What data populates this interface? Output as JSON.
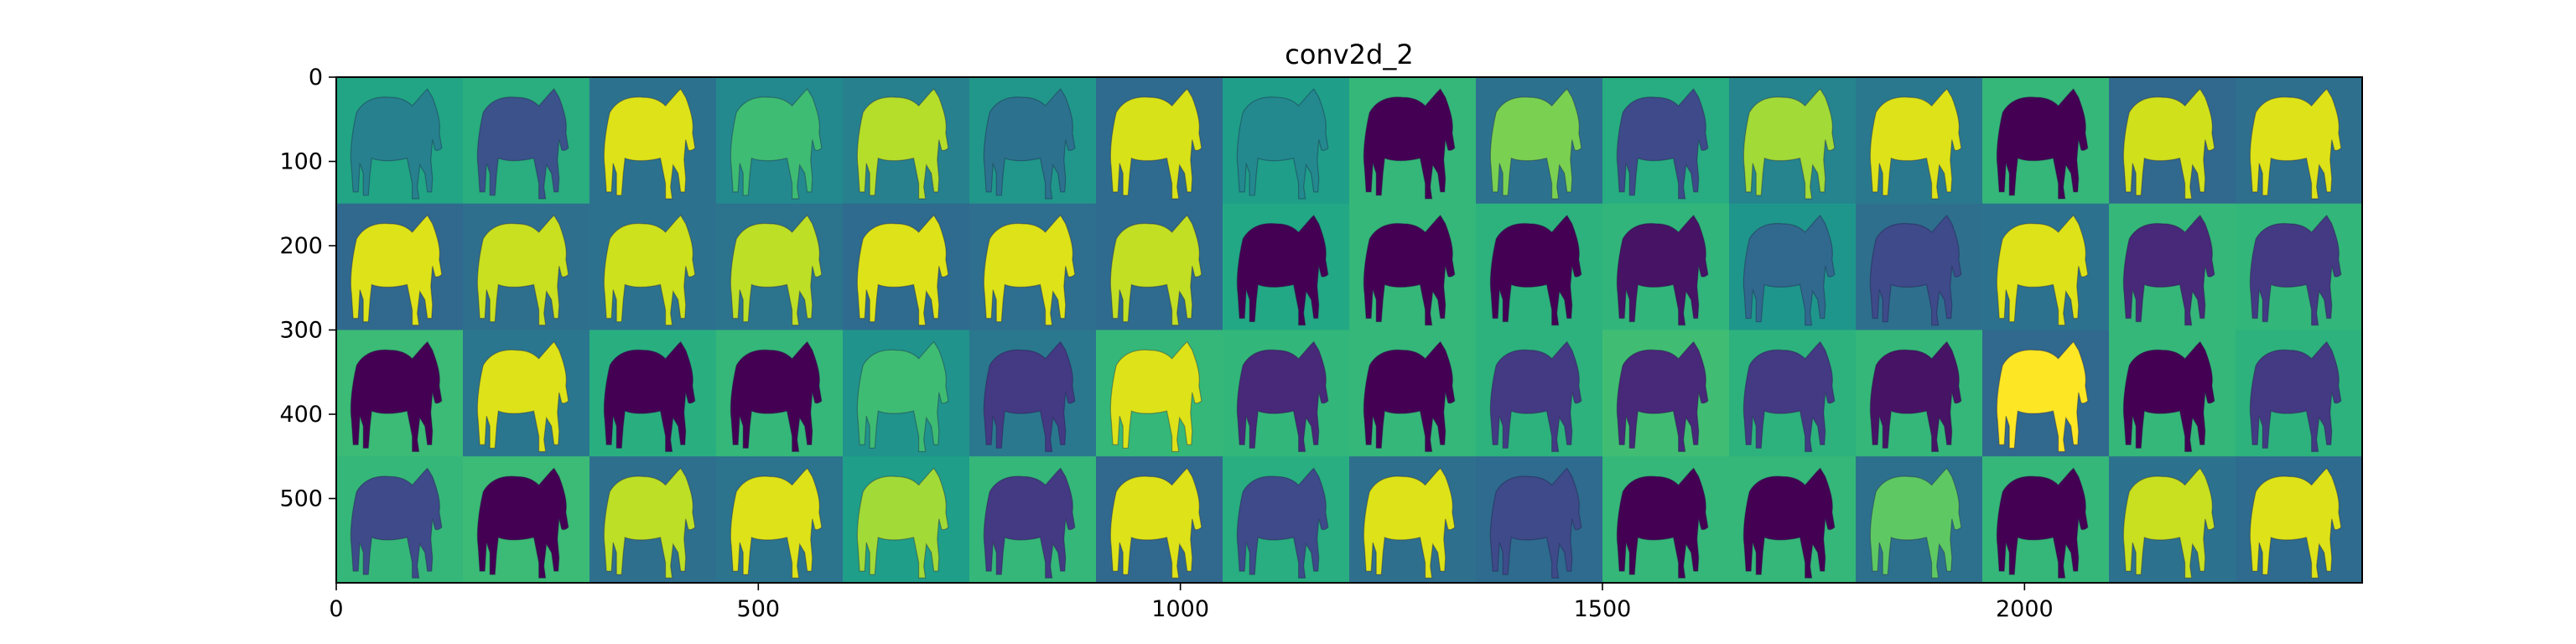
{
  "chart_data": {
    "type": "heatmap",
    "title": "conv2d_2",
    "xlabel": "",
    "ylabel": "",
    "xlim": [
      0,
      2400
    ],
    "ylim": [
      600,
      0
    ],
    "x_ticks": [
      0,
      500,
      1000,
      1500,
      2000
    ],
    "y_ticks": [
      0,
      100,
      200,
      300,
      400,
      500
    ],
    "grid": false,
    "colormap": "viridis",
    "tile_rows": 4,
    "tile_cols": 16,
    "tile_size": 150,
    "subject": "horse",
    "tile_backgrounds": [
      [
        "#21a585",
        "#2aad7f",
        "#2c728e",
        "#23898e",
        "#27808e",
        "#20978a",
        "#2e6b8e",
        "#1f9e89",
        "#35b779",
        "#2c728e",
        "#27ad81",
        "#25848e",
        "#2a788e",
        "#35b779",
        "#31688e",
        "#2e6f8e"
      ],
      [
        "#31688e",
        "#2e6f8e",
        "#2c728e",
        "#2c738e",
        "#2e6b8e",
        "#2e6e8e",
        "#2e6b8e",
        "#22a884",
        "#35b779",
        "#2db27d",
        "#31b57b",
        "#1f968b",
        "#2e6f8e",
        "#2c728e",
        "#35b779",
        "#33b67a"
      ],
      [
        "#3bbb75",
        "#2a768e",
        "#29af7f",
        "#35b779",
        "#20938c",
        "#2a788e",
        "#35b779",
        "#33b67a",
        "#35b779",
        "#2db27d",
        "#40bd72",
        "#2db27d",
        "#35b779",
        "#31688e",
        "#35b779",
        "#2db27d"
      ],
      [
        "#35b779",
        "#3bbb75",
        "#2e6f8e",
        "#2c738e",
        "#1f9e89",
        "#35b779",
        "#31688e",
        "#28ae80",
        "#2e6f8e",
        "#2e6b8e",
        "#35b779",
        "#35b779",
        "#2d708e",
        "#35b779",
        "#2c728e",
        "#2e6b8e"
      ]
    ],
    "tile_horses": [
      [
        "#27808e",
        "#3b528b",
        "#dde318",
        "#3fbc73",
        "#b5de2b",
        "#2c728e",
        "#d8e219",
        "#23898e",
        "#440154",
        "#7ad151",
        "#3e4a89",
        "#a2da37",
        "#dde318",
        "#440154",
        "#d0e11c",
        "#dde318"
      ],
      [
        "#dde318",
        "#c8e020",
        "#cde11d",
        "#bddf26",
        "#dde318",
        "#dde318",
        "#c2df23",
        "#440154",
        "#440154",
        "#440154",
        "#471365",
        "#31688e",
        "#3e4a89",
        "#dde318",
        "#482878",
        "#443983"
      ],
      [
        "#440154",
        "#dde318",
        "#440154",
        "#440154",
        "#3fbc73",
        "#443983",
        "#dde318",
        "#482878",
        "#440154",
        "#443983",
        "#482878",
        "#443983",
        "#471365",
        "#fde725",
        "#440154",
        "#443983"
      ],
      [
        "#3e4a89",
        "#440154",
        "#bddf26",
        "#dde318",
        "#a2da37",
        "#443983",
        "#dde318",
        "#3e4a89",
        "#dde318",
        "#3e4a89",
        "#440154",
        "#440154",
        "#5ec962",
        "#440154",
        "#c8e020",
        "#dde318"
      ]
    ]
  }
}
